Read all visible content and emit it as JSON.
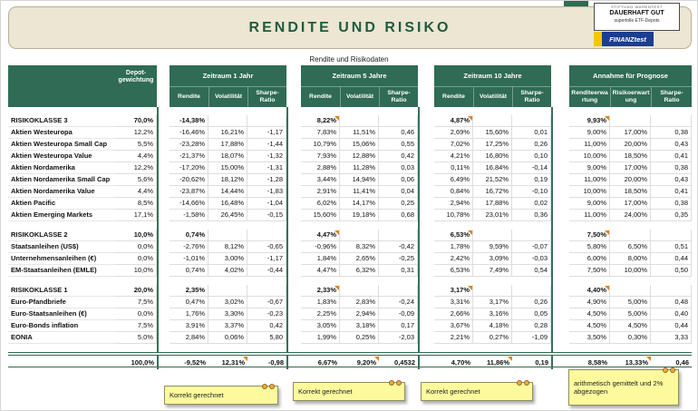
{
  "banner": {
    "title": "RENDITE UND RISIKO",
    "stamp": {
      "line1": "STIFTUNG WARENTEST",
      "line2": "DAUERHAFT GUT",
      "line3": "supertolle ETF-Depots"
    },
    "logo_text": "FINANZtest"
  },
  "table": {
    "title": "Rendite und Risikodaten",
    "header": {
      "depot": "Depot-gewichtung",
      "groups": [
        {
          "title": "Zeitraum 1 Jahr",
          "cols": [
            "Rendite",
            "Volatilität",
            "Sharpe-Ratio"
          ]
        },
        {
          "title": "Zeitraum 5 Jahre",
          "cols": [
            "Rendite",
            "Volatilität",
            "Sharpe-Ratio"
          ]
        },
        {
          "title": "Zeitraum 10 Jahre",
          "cols": [
            "Rendite",
            "Volatilität",
            "Sharpe-Ratio"
          ]
        },
        {
          "title": "Annahme für Prognose",
          "cols": [
            "Renditeerwartung",
            "Risikoerwartung",
            "Sharpe-Ratio"
          ]
        }
      ]
    },
    "rows": [
      {
        "type": "spacer"
      },
      {
        "type": "section",
        "label": "RISIKOKLASSE 3",
        "values": [
          "70,0%",
          "-14,38%",
          "",
          "",
          "8,22%",
          "",
          "",
          "4,87%",
          "",
          "",
          "9,93%",
          "",
          ""
        ],
        "marks": [
          4,
          7,
          10
        ]
      },
      {
        "type": "data",
        "label": "Aktien Westeuropa",
        "values": [
          "12,2%",
          "-16,46%",
          "16,21%",
          "-1,17",
          "7,83%",
          "11,51%",
          "0,46",
          "2,69%",
          "15,60%",
          "0,01",
          "9,00%",
          "17,00%",
          "0,38"
        ]
      },
      {
        "type": "data",
        "label": "Aktien Westeuropa Small Cap",
        "values": [
          "5,5%",
          "-23,28%",
          "17,88%",
          "-1,44",
          "10,79%",
          "15,06%",
          "0,55",
          "7,02%",
          "17,25%",
          "0,26",
          "11,00%",
          "20,00%",
          "0,43"
        ]
      },
      {
        "type": "data",
        "label": "Aktien Westeuropa Value",
        "values": [
          "4,4%",
          "-21,37%",
          "18,07%",
          "-1,32",
          "7,93%",
          "12,88%",
          "0,42",
          "4,21%",
          "16,80%",
          "0,10",
          "10,00%",
          "18,50%",
          "0,41"
        ]
      },
      {
        "type": "data",
        "label": "Aktien Nordamerika",
        "values": [
          "12,2%",
          "-17,20%",
          "15,00%",
          "-1,31",
          "2,88%",
          "11,28%",
          "0,03",
          "0,11%",
          "16,84%",
          "-0,14",
          "9,00%",
          "17,00%",
          "0,38"
        ]
      },
      {
        "type": "data",
        "label": "Aktien Nordamerika Small Cap",
        "values": [
          "5,6%",
          "-20,62%",
          "18,12%",
          "-1,28",
          "3,44%",
          "14,94%",
          "0,06",
          "6,49%",
          "21,52%",
          "0,19",
          "11,00%",
          "20,00%",
          "0,43"
        ]
      },
      {
        "type": "data",
        "label": "Aktien Nordamerika Value",
        "values": [
          "4,4%",
          "-23,87%",
          "14,44%",
          "-1,83",
          "2,91%",
          "11,41%",
          "0,04",
          "0,84%",
          "16,72%",
          "-0,10",
          "10,00%",
          "18,50%",
          "0,41"
        ]
      },
      {
        "type": "data",
        "label": "Aktien Pacific",
        "values": [
          "8,5%",
          "-14,66%",
          "16,48%",
          "-1,04",
          "6,02%",
          "14,17%",
          "0,25",
          "2,94%",
          "17,88%",
          "0,02",
          "9,00%",
          "17,00%",
          "0,38"
        ]
      },
      {
        "type": "data",
        "label": "Aktien Emerging Markets",
        "values": [
          "17,1%",
          "-1,58%",
          "26,45%",
          "-0,15",
          "15,60%",
          "19,18%",
          "0,68",
          "10,78%",
          "23,01%",
          "0,36",
          "11,00%",
          "24,00%",
          "0,35"
        ]
      },
      {
        "type": "spacer"
      },
      {
        "type": "section",
        "label": "RISIKOKLASSE 2",
        "values": [
          "10,0%",
          "0,74%",
          "",
          "",
          "4,47%",
          "",
          "",
          "6,53%",
          "",
          "",
          "7,50%",
          "",
          ""
        ],
        "marks": [
          4,
          7,
          10
        ]
      },
      {
        "type": "data",
        "label": "Staatsanleihen (US$)",
        "values": [
          "0,0%",
          "-2,76%",
          "8,12%",
          "-0,65",
          "-0,96%",
          "8,32%",
          "-0,42",
          "1,78%",
          "9,59%",
          "-0,07",
          "5,80%",
          "6,50%",
          "0,51"
        ]
      },
      {
        "type": "data",
        "label": "Unternehmensanleihen (€)",
        "values": [
          "0,0%",
          "-1,01%",
          "3,00%",
          "-1,17",
          "1,84%",
          "2,65%",
          "-0,25",
          "2,42%",
          "3,09%",
          "-0,03",
          "6,00%",
          "8,00%",
          "0,44"
        ]
      },
      {
        "type": "data",
        "label": "EM-Staatsanleihen (EMLE)",
        "values": [
          "10,0%",
          "0,74%",
          "4,02%",
          "-0,44",
          "4,47%",
          "6,32%",
          "0,31",
          "6,53%",
          "7,49%",
          "0,54",
          "7,50%",
          "10,00%",
          "0,50"
        ]
      },
      {
        "type": "spacer"
      },
      {
        "type": "section",
        "label": "RISIKOKLASSE 1",
        "values": [
          "20,0%",
          "2,35%",
          "",
          "",
          "2,33%",
          "",
          "",
          "3,17%",
          "",
          "",
          "4,40%",
          "",
          ""
        ],
        "marks": [
          4,
          7,
          10
        ]
      },
      {
        "type": "data",
        "label": "Euro-Pfandbriefe",
        "values": [
          "7,5%",
          "0,47%",
          "3,02%",
          "-0,67",
          "1,83%",
          "2,83%",
          "-0,24",
          "3,31%",
          "3,17%",
          "0,26",
          "4,90%",
          "5,00%",
          "0,48"
        ]
      },
      {
        "type": "data",
        "label": "Euro-Staatsanleihen (€)",
        "values": [
          "0,0%",
          "1,76%",
          "3,30%",
          "-0,23",
          "2,25%",
          "2,94%",
          "-0,09",
          "2,66%",
          "3,16%",
          "0,05",
          "4,50%",
          "5,00%",
          "0,40"
        ]
      },
      {
        "type": "data",
        "label": "Euro-Bonds inflation",
        "values": [
          "7,5%",
          "3,91%",
          "3,37%",
          "0,42",
          "3,05%",
          "3,18%",
          "0,17",
          "3,67%",
          "4,18%",
          "0,28",
          "4,50%",
          "4,50%",
          "0,44"
        ]
      },
      {
        "type": "data",
        "label": "EONIA",
        "values": [
          "5,0%",
          "2,84%",
          "0,06%",
          "5,80",
          "1,99%",
          "0,25%",
          "-2,03",
          "2,21%",
          "0,27%",
          "-1,09",
          "3,50%",
          "0,30%",
          "3,33"
        ]
      },
      {
        "type": "spacer"
      },
      {
        "type": "total",
        "label": "",
        "values": [
          "100,0%",
          "-9,52%",
          "12,31%",
          "-0,98",
          "6,67%",
          "9,20%",
          "0,4532",
          "4,70%",
          "11,86%",
          "0,19",
          "8,58%",
          "13,33%",
          "0,46"
        ],
        "marks": [
          2,
          5,
          8,
          11
        ]
      }
    ],
    "notes": [
      {
        "text": "Korrekt gerechnet"
      },
      {
        "text": "Korrekt gerechnet"
      },
      {
        "text": "Korrekt gerechnet"
      },
      {
        "text": "arithmetisch gemittelt und 2% abgezogen"
      }
    ]
  }
}
